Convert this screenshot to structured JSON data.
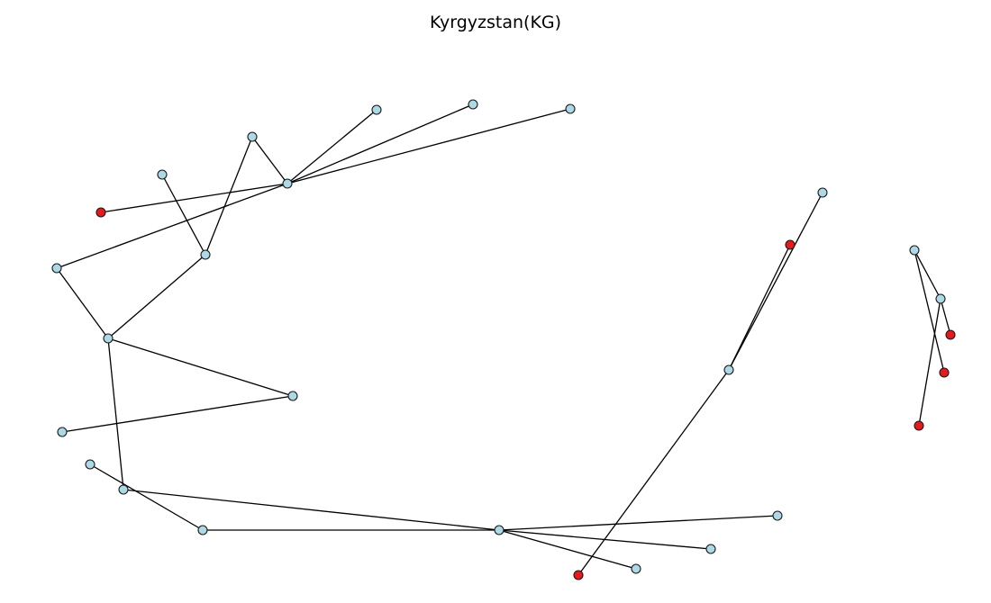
{
  "title": "Kyrgyzstan(KG)",
  "colors": {
    "normal": "#add8e6",
    "highlight": "#e41a1c",
    "edge": "#000000"
  },
  "nodes": [
    {
      "id": "n1",
      "color": "normal"
    },
    {
      "id": "n2",
      "color": "normal"
    },
    {
      "id": "n3",
      "color": "normal"
    },
    {
      "id": "n4",
      "color": "normal"
    },
    {
      "id": "n5",
      "color": "normal"
    },
    {
      "id": "n6",
      "color": "normal"
    },
    {
      "id": "n7",
      "color": "highlight"
    },
    {
      "id": "n8",
      "color": "normal"
    },
    {
      "id": "n9",
      "color": "normal"
    },
    {
      "id": "n10",
      "color": "normal"
    },
    {
      "id": "n11",
      "color": "normal"
    },
    {
      "id": "n12",
      "color": "normal"
    },
    {
      "id": "n13",
      "color": "normal"
    },
    {
      "id": "n14",
      "color": "normal"
    },
    {
      "id": "n15",
      "color": "normal"
    },
    {
      "id": "n16",
      "color": "normal"
    },
    {
      "id": "n17",
      "color": "normal"
    },
    {
      "id": "n18",
      "color": "normal"
    },
    {
      "id": "n19",
      "color": "normal"
    },
    {
      "id": "n20",
      "color": "normal"
    },
    {
      "id": "n21",
      "color": "highlight"
    },
    {
      "id": "n22",
      "color": "normal"
    },
    {
      "id": "n23",
      "color": "highlight"
    },
    {
      "id": "n24",
      "color": "normal"
    },
    {
      "id": "n25",
      "color": "normal"
    },
    {
      "id": "n26",
      "color": "highlight"
    },
    {
      "id": "n27",
      "color": "normal"
    },
    {
      "id": "n28",
      "color": "highlight"
    }
  ],
  "edges": [
    [
      "n1",
      "n8"
    ],
    [
      "n1",
      "n9"
    ],
    [
      "n2",
      "n8"
    ],
    [
      "n3",
      "n8"
    ],
    [
      "n4",
      "n8"
    ],
    [
      "n7",
      "n8"
    ],
    [
      "n5",
      "n9"
    ],
    [
      "n9",
      "n10"
    ],
    [
      "n10",
      "n11"
    ],
    [
      "n10",
      "n16"
    ],
    [
      "n10",
      "n12"
    ],
    [
      "n11",
      "n8"
    ],
    [
      "n12",
      "n17"
    ],
    [
      "n14",
      "n16"
    ],
    [
      "n13",
      "n15"
    ],
    [
      "n15",
      "n17"
    ],
    [
      "n17",
      "n20"
    ],
    [
      "n17",
      "n19"
    ],
    [
      "n17",
      "n18"
    ],
    [
      "n22",
      "n21"
    ],
    [
      "n22",
      "n25"
    ],
    [
      "n22",
      "n23"
    ],
    [
      "n24",
      "n27"
    ],
    [
      "n24",
      "n28"
    ],
    [
      "n27",
      "n26"
    ]
  ]
}
